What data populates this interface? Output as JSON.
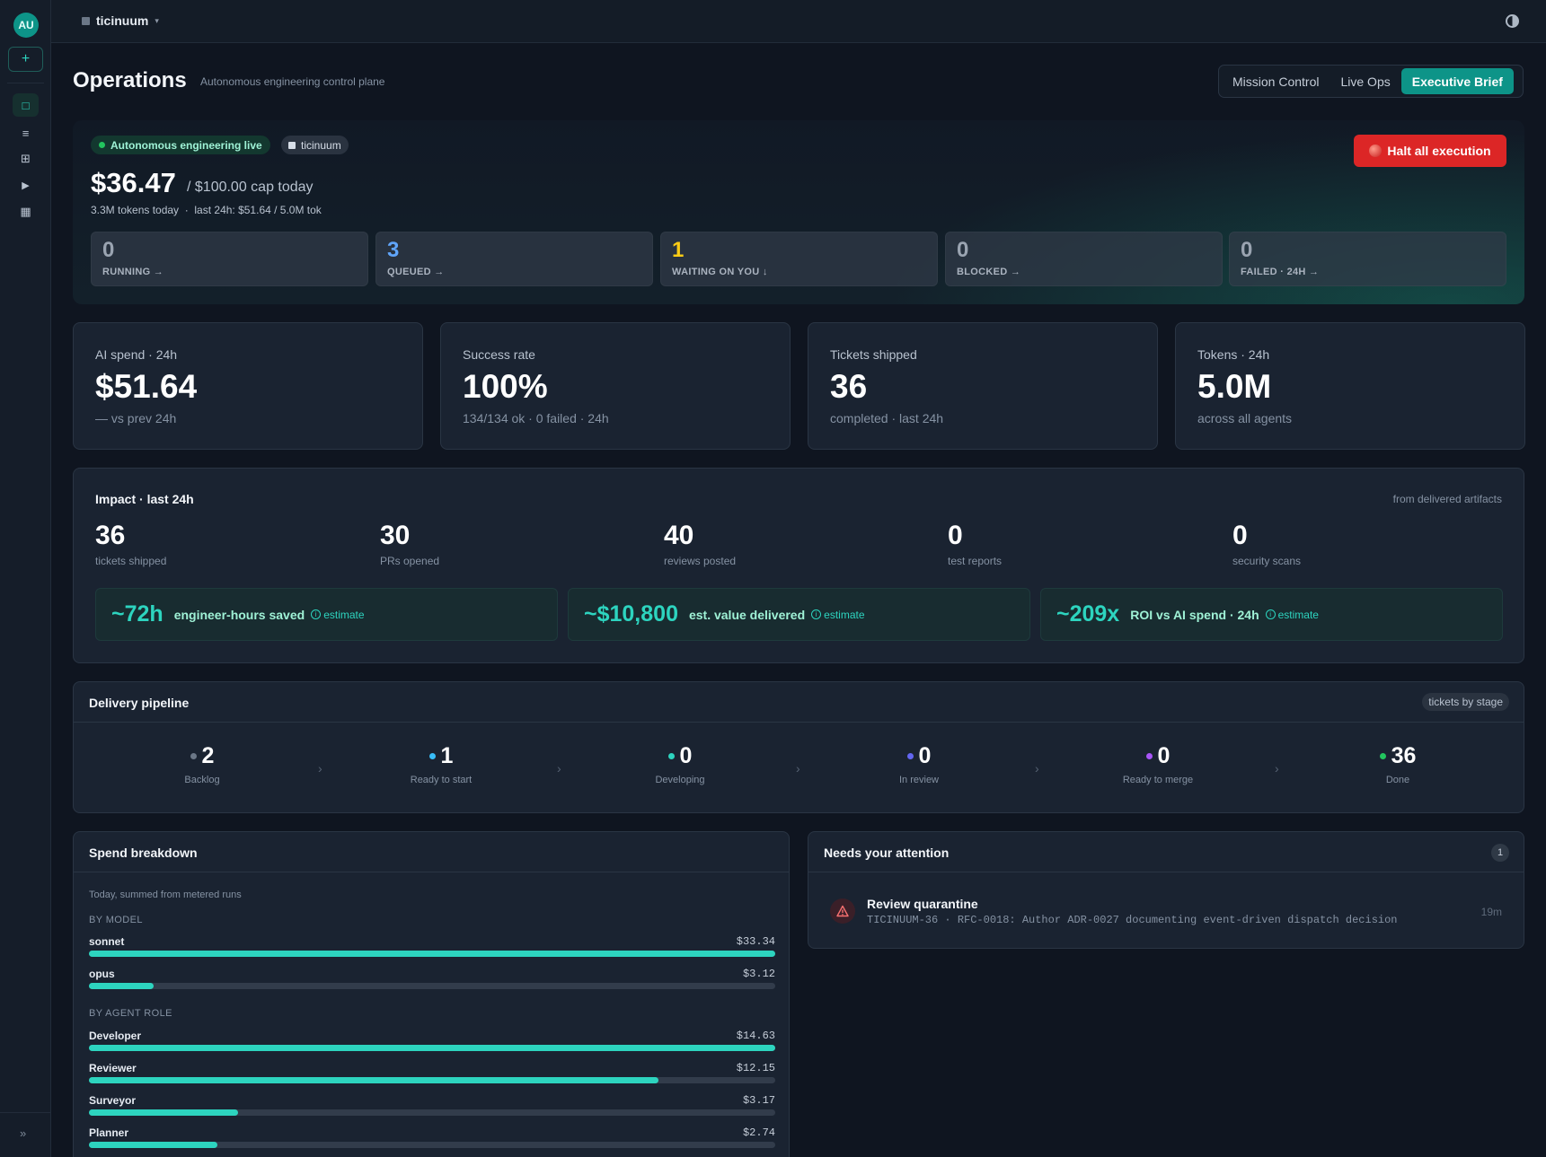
{
  "sidebar": {
    "avatar": "AU",
    "new_icon": "+",
    "nav": [
      {
        "icon": "square-icon",
        "glyph": "□"
      },
      {
        "icon": "list-icon",
        "glyph": "≡"
      },
      {
        "icon": "grid-icon",
        "glyph": "⊞"
      },
      {
        "icon": "play-icon",
        "glyph": "▶"
      },
      {
        "icon": "calendar-icon",
        "glyph": "▦"
      }
    ],
    "collapse_glyph": "»"
  },
  "topbar": {
    "workspace": "ticinuum",
    "caret": "▾"
  },
  "header": {
    "title": "Operations",
    "subtitle": "Autonomous engineering control plane",
    "tabs": [
      {
        "label": "Mission Control",
        "active": false
      },
      {
        "label": "Live Ops",
        "active": false
      },
      {
        "label": "Executive Brief",
        "active": true
      }
    ]
  },
  "hero": {
    "live_pill": "Autonomous engineering live",
    "workspace_pill": "ticinuum",
    "spend_today": "$36.47",
    "cap": "/ $100.00 cap today",
    "meta": "3.3M tokens today  ·  last 24h: $51.64 / 5.0M tok",
    "halt_label": "Halt all execution",
    "status": [
      {
        "value": "0",
        "label": "RUNNING →",
        "color": "#9aa4b1"
      },
      {
        "value": "3",
        "label": "QUEUED →",
        "color": "#60a5fa"
      },
      {
        "value": "1",
        "label": "WAITING ON YOU ↓",
        "color": "#facc15"
      },
      {
        "value": "0",
        "label": "BLOCKED →",
        "color": "#9aa4b1"
      },
      {
        "value": "0",
        "label": "FAILED · 24H →",
        "color": "#9aa4b1"
      }
    ]
  },
  "kpis": [
    {
      "label": "AI spend · 24h",
      "value": "$51.64",
      "sub": "— vs prev 24h"
    },
    {
      "label": "Success rate",
      "value": "100%",
      "sub": "134/134 ok · 0 failed · 24h"
    },
    {
      "label": "Tickets shipped",
      "value": "36",
      "sub": "completed · last 24h"
    },
    {
      "label": "Tokens · 24h",
      "value": "5.0M",
      "sub": "across all agents"
    }
  ],
  "impact": {
    "title": "Impact · last 24h",
    "source": "from delivered artifacts",
    "stats": [
      {
        "value": "36",
        "label": "tickets shipped"
      },
      {
        "value": "30",
        "label": "PRs opened"
      },
      {
        "value": "40",
        "label": "reviews posted"
      },
      {
        "value": "0",
        "label": "test reports"
      },
      {
        "value": "0",
        "label": "security scans"
      }
    ],
    "estimates": [
      {
        "value": "~72h",
        "label": "engineer-hours saved",
        "tag": "estimate"
      },
      {
        "value": "~$10,800",
        "label": "est. value delivered",
        "tag": "estimate"
      },
      {
        "value": "~209x",
        "label": "ROI vs AI spend · 24h",
        "tag": "estimate"
      }
    ]
  },
  "pipeline": {
    "title": "Delivery pipeline",
    "badge": "tickets by stage",
    "stages": [
      {
        "value": "2",
        "label": "Backlog",
        "color": "#6b7787"
      },
      {
        "value": "1",
        "label": "Ready to start",
        "color": "#38bdf8"
      },
      {
        "value": "0",
        "label": "Developing",
        "color": "#2dd4bf"
      },
      {
        "value": "0",
        "label": "In review",
        "color": "#6366f1"
      },
      {
        "value": "0",
        "label": "Ready to merge",
        "color": "#a855f7"
      },
      {
        "value": "36",
        "label": "Done",
        "color": "#22c55e"
      }
    ],
    "chevron": "›"
  },
  "spend": {
    "title": "Spend breakdown",
    "note": "Today, summed from metered runs",
    "by_model_label": "BY MODEL",
    "by_model": [
      {
        "name": "sonnet",
        "amount": "$33.34",
        "fraction": 1.0
      },
      {
        "name": "opus",
        "amount": "$3.12",
        "fraction": 0.094
      }
    ],
    "by_role_label": "BY AGENT ROLE",
    "by_role": [
      {
        "name": "Developer",
        "amount": "$14.63",
        "fraction": 1.0
      },
      {
        "name": "Reviewer",
        "amount": "$12.15",
        "fraction": 0.83
      },
      {
        "name": "Surveyor",
        "amount": "$3.17",
        "fraction": 0.217
      },
      {
        "name": "Planner",
        "amount": "$2.74",
        "fraction": 0.187
      }
    ]
  },
  "attention": {
    "title": "Needs your attention",
    "count": "1",
    "item": {
      "title": "Review quarantine",
      "desc": "TICINUUM-36 · RFC-0018: Author ADR-0027 documenting event-driven dispatch decision",
      "time": "19m"
    }
  },
  "colors": {
    "accent": "#0d9488",
    "accent_light": "#2dd4bf",
    "danger": "#dc2626"
  }
}
